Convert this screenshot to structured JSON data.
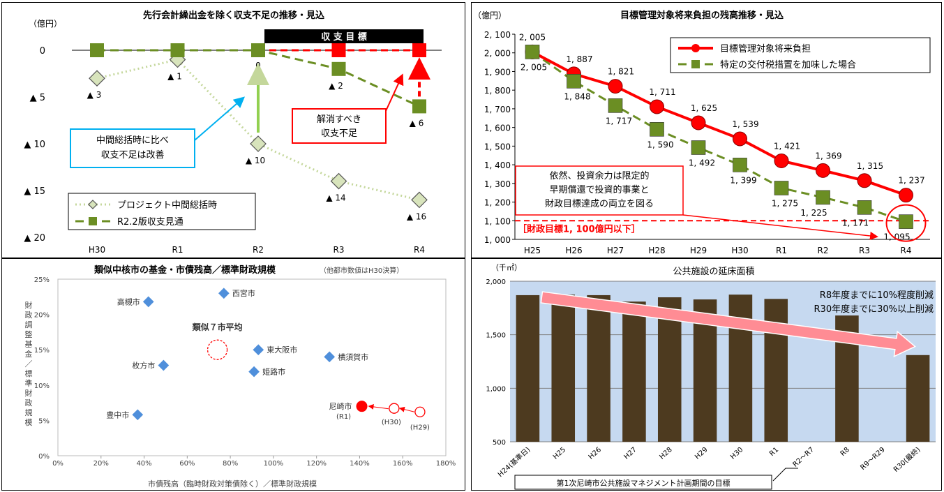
{
  "colors": {
    "red": "#ff0000",
    "green": "#6b8e23",
    "lightgreen": "#c4d79b",
    "diamond": "#d8e4bc",
    "scatter_blue": "#4f8fdb",
    "target_box": "#000000",
    "callout_blue": "#00b0f0",
    "bar": "#4d3a1f",
    "plot_bg": "#c6d9f0",
    "arrow_pink": "#ff8c94"
  },
  "chart_data": [
    {
      "type": "line",
      "title": "先行会計繰出金を除く収支不足の推移・見込",
      "ylabel": "（億円）",
      "categories": [
        "H30",
        "R1",
        "R2",
        "R3",
        "R4"
      ],
      "y_tick_labels": [
        "0",
        "▲ 5",
        "▲ 10",
        "▲ 15",
        "▲ 20"
      ],
      "ylim": [
        -20,
        0
      ],
      "target_banner": "収 支 目 標",
      "series": [
        {
          "name": "プロジェクト中間総括時",
          "values": [
            -3,
            -1,
            -10,
            -14,
            -16
          ],
          "labels": [
            "▲ 3",
            "▲ 1",
            "▲ 10",
            "▲ 14",
            "▲ 16"
          ]
        },
        {
          "name": "R2.2版収支見通",
          "values": [
            0,
            0,
            0,
            -2,
            -6
          ],
          "labels": [
            "",
            "",
            "0",
            "▲ 2",
            "▲ 6"
          ]
        }
      ],
      "target_values": [
        0,
        0,
        0
      ],
      "callout_improve": [
        "中間総括時に比べ",
        "収支不足は改善"
      ],
      "callout_resolve": [
        "解消すべき",
        "収支不足"
      ]
    },
    {
      "type": "line",
      "title": "目標管理対象将来負担の残高推移・見込",
      "ylabel": "（億円）",
      "categories": [
        "H25",
        "H26",
        "H27",
        "H28",
        "H29",
        "H30",
        "R1",
        "R2",
        "R3",
        "R4"
      ],
      "y_tick_labels": [
        "1, 000",
        "1, 100",
        "1, 200",
        "1, 300",
        "1, 400",
        "1, 500",
        "1, 600",
        "1, 700",
        "1, 800",
        "1, 900",
        "2, 000",
        "2, 100"
      ],
      "ylim": [
        1000,
        2100
      ],
      "series": [
        {
          "name": "目標管理対象将来負担",
          "values": [
            2005,
            1887,
            1821,
            1711,
            1625,
            1539,
            1421,
            1369,
            1315,
            1237
          ],
          "labels": [
            "2, 005",
            "1, 887",
            "1, 821",
            "1, 711",
            "1, 625",
            "1, 539",
            "1, 421",
            "1, 369",
            "1, 315",
            "1, 237"
          ]
        },
        {
          "name": "特定の交付税措置を加味した場合",
          "values": [
            2005,
            1848,
            1717,
            1590,
            1492,
            1399,
            1275,
            1225,
            1171,
            1095
          ],
          "labels": [
            "2, 005",
            "1, 848",
            "1, 717",
            "1, 590",
            "1, 492",
            "1, 399",
            "1, 275",
            "1, 225",
            "1, 171",
            "1, 095"
          ]
        }
      ],
      "target_line": 1100,
      "target_label": "［財政目標1, 100億円以下］",
      "note": [
        "依然、投資余力は限定的",
        "早期償還で投資的事業と",
        "財政目標達成の両立を図る"
      ]
    },
    {
      "type": "scatter",
      "title": "類似中核市の基金・市債残高／標準財政規模",
      "subtitle": "（他都市数値はH30決算）",
      "xlabel": "市債残高（臨時財政対策債除く）／標準財政規模",
      "ylabel": "財政調整基金／標準財政規模",
      "x_tick_labels": [
        "0%",
        "20%",
        "40%",
        "60%",
        "80%",
        "100%",
        "120%",
        "140%",
        "160%",
        "180%"
      ],
      "y_tick_labels": [
        "0%",
        "5%",
        "10%",
        "15%",
        "20%",
        "25%"
      ],
      "xlim": [
        0,
        180
      ],
      "ylim": [
        0,
        25
      ],
      "points": [
        {
          "label": "西宮市",
          "x": 77,
          "y": 23
        },
        {
          "label": "高槻市",
          "x": 42,
          "y": 21.8
        },
        {
          "label": "東大阪市",
          "x": 93,
          "y": 15
        },
        {
          "label": "横須賀市",
          "x": 126,
          "y": 14
        },
        {
          "label": "枚方市",
          "x": 49,
          "y": 12.8
        },
        {
          "label": "姫路市",
          "x": 91,
          "y": 11.9
        },
        {
          "label": "豊中市",
          "x": 37,
          "y": 5.8
        }
      ],
      "average": {
        "label": "類似７市平均",
        "x": 74,
        "y": 15
      },
      "amagasaki": [
        {
          "label": "尼崎市",
          "sublabel": "(R1)",
          "x": 141,
          "y": 7
        },
        {
          "label": "(H30)",
          "x": 156,
          "y": 6.7
        },
        {
          "label": "(H29)",
          "x": 168,
          "y": 6.2
        }
      ]
    },
    {
      "type": "bar",
      "title": "公共施設の延床面積",
      "ylabel": "（千㎡）",
      "categories": [
        "H24(基準日)",
        "H25",
        "H26",
        "H27",
        "H28",
        "H29",
        "H30",
        "R1",
        "R2～R7",
        "R8",
        "R9～R29",
        "R30(最終)"
      ],
      "values": [
        1870,
        1875,
        1870,
        1810,
        1850,
        1830,
        1875,
        1835,
        null,
        1680,
        null,
        1310
      ],
      "y_tick_labels": [
        "500",
        "1,000",
        "1,500",
        "2,000"
      ],
      "ylim": [
        500,
        2000
      ],
      "goal_text": [
        "R8年度までに10%程度削減",
        "R30年度までに30%以上削減"
      ],
      "footnote": "第1次尼崎市公共施設マネジメント計画期間の目標"
    }
  ]
}
